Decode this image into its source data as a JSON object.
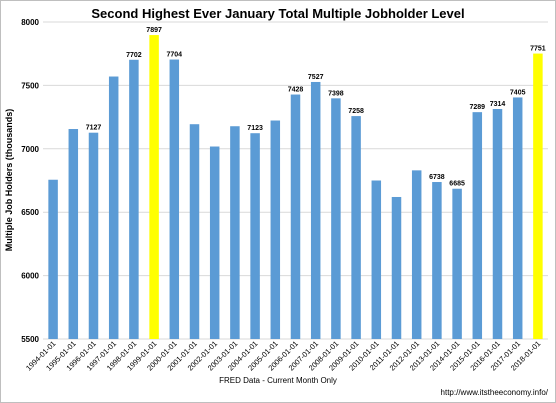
{
  "chart_data": {
    "type": "bar",
    "title": "Second Highest Ever January Total Multiple Jobholder Level",
    "xlabel": "FRED Data - Current Month Only",
    "ylabel": "Multiple Job Holders (thousands)",
    "source_note": "http://www.itstheeconomy.info/",
    "ylim": [
      5500,
      8000
    ],
    "yticks": [
      5500,
      6000,
      6500,
      7000,
      7500,
      8000
    ],
    "grid": true,
    "categories": [
      "1994-01-01",
      "1995-01-01",
      "1996-01-01",
      "1997-01-01",
      "1998-01-01",
      "1999-01-01",
      "2000-01-01",
      "2001-01-01",
      "2002-01-01",
      "2003-01-01",
      "2004-01-01",
      "2005-01-01",
      "2006-01-01",
      "2007-01-01",
      "2008-01-01",
      "2009-01-01",
      "2010-01-01",
      "2011-01-01",
      "2012-01-01",
      "2013-01-01",
      "2014-01-01",
      "2015-01-01",
      "2016-01-01",
      "2017-01-01",
      "2018-01-01"
    ],
    "values": [
      6756,
      7156,
      7127,
      7570,
      7702,
      7897,
      7704,
      7194,
      7018,
      7178,
      7123,
      7223,
      7428,
      7527,
      7398,
      7258,
      6750,
      6620,
      6830,
      6738,
      6685,
      7289,
      7314,
      7405,
      7751
    ],
    "data_labels": [
      null,
      null,
      "7127",
      null,
      "7702",
      "7897",
      "7704",
      null,
      null,
      null,
      "7123",
      null,
      "7428",
      "7527",
      "7398",
      "7258",
      null,
      null,
      null,
      "6738",
      "6685",
      "7289",
      "7314",
      "7405",
      "7751"
    ],
    "highlight_indices": [
      5,
      24
    ],
    "colors": {
      "bar": "#5b9bd5",
      "highlight": "#ffff00",
      "grid": "#d9d9d9"
    }
  }
}
